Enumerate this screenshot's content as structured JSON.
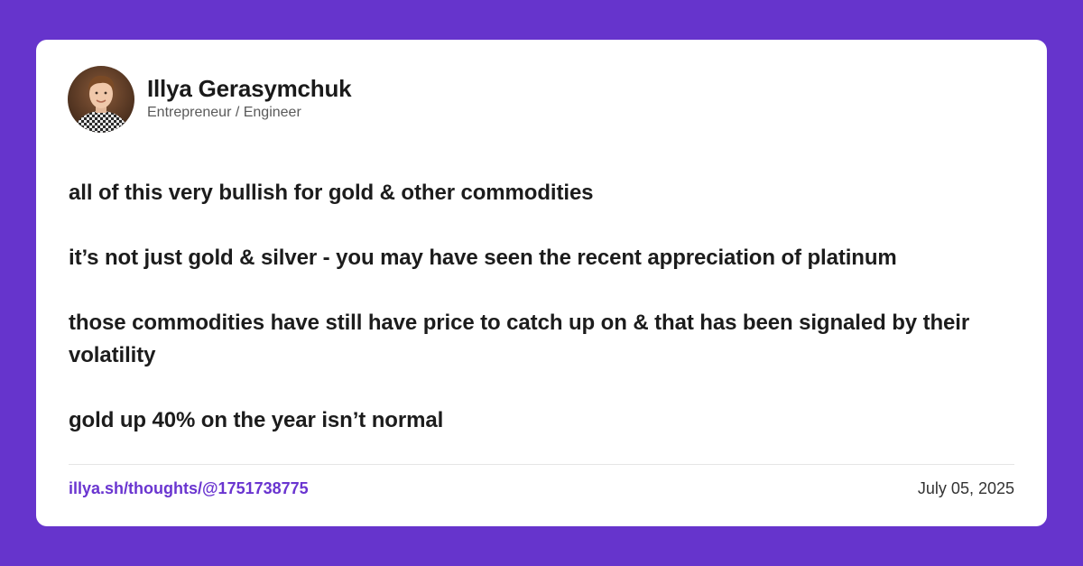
{
  "colors": {
    "background": "#6634cc",
    "card": "#ffffff",
    "link": "#6a35d0",
    "text": "#1c1c1c"
  },
  "author": {
    "name": "Illya Gerasymchuk",
    "title": "Entrepreneur / Engineer",
    "avatar_icon": "profile-photo"
  },
  "post": {
    "paragraphs": [
      "all of this very bullish for gold & other commodities",
      "it’s not just gold & silver - you may have seen the recent appreciation of platinum",
      "those commodities have still have price to catch up on & that has been signaled by their volatility",
      "gold up 40% on the year isn’t normal"
    ]
  },
  "footer": {
    "link": "illya.sh/thoughts/@1751738775",
    "date": "July 05, 2025"
  }
}
